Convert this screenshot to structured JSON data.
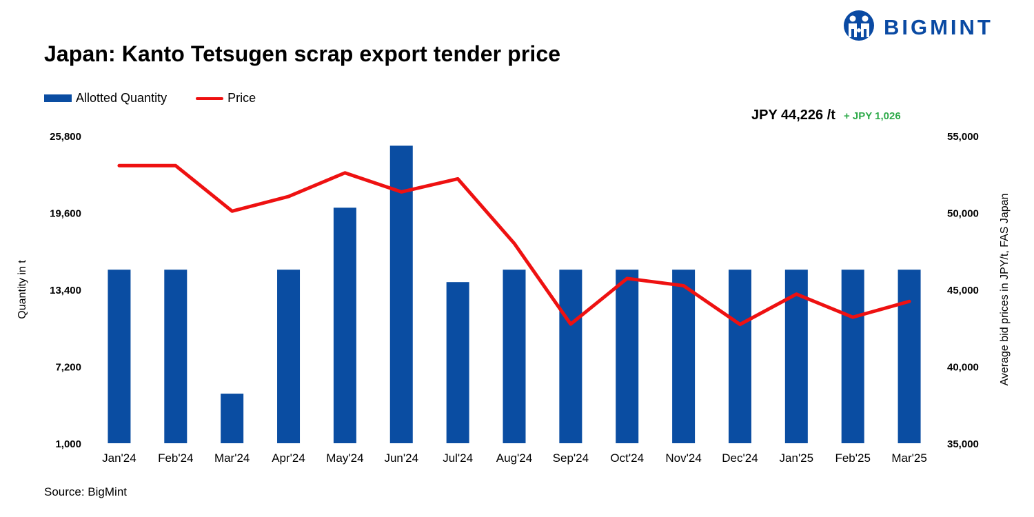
{
  "brand": {
    "name": "BIGMINT",
    "color": "#0a4aa3"
  },
  "title": "Japan: Kanto Tetsugen scrap export tender price",
  "latest": {
    "price": "JPY 44,226 /t",
    "change": "+ JPY 1,026",
    "change_color": "#2eaa4a"
  },
  "source": "Source: BigMint",
  "chart_data": {
    "type": "bar+line",
    "categories": [
      "Jan'24",
      "Feb'24",
      "Mar'24",
      "Apr'24",
      "May'24",
      "Jun'24",
      "Jul'24",
      "Aug'24",
      "Sep'24",
      "Oct'24",
      "Nov'24",
      "Dec'24",
      "Jan'25",
      "Feb'25",
      "Mar'25"
    ],
    "series": [
      {
        "name": "Allotted Quantity",
        "type": "bar",
        "axis": "left",
        "color": "#0a4da2",
        "values": [
          15000,
          15000,
          5000,
          15000,
          20000,
          25000,
          14000,
          15000,
          15000,
          15000,
          15000,
          15000,
          15000,
          15000,
          15000
        ]
      },
      {
        "name": "Price",
        "type": "line",
        "axis": "right",
        "color": "#ee1111",
        "values": [
          53060,
          53060,
          50100,
          51050,
          52590,
          51350,
          52200,
          48000,
          42750,
          45720,
          45250,
          42730,
          44700,
          43200,
          44226
        ]
      }
    ],
    "ylabel": "Quantity in t",
    "y2label": "Average bid prices in JPY/t, FAS Japan",
    "ylim": [
      1000,
      25800
    ],
    "yticks": [
      1000,
      7200,
      13400,
      19600,
      25800
    ],
    "ytick_labels": [
      "1,000",
      "7,200",
      "13,400",
      "19,600",
      "25,800"
    ],
    "y2lim": [
      35000,
      55000
    ],
    "y2ticks": [
      35000,
      40000,
      45000,
      50000,
      55000
    ],
    "y2tick_labels": [
      "35,000",
      "40,000",
      "45,000",
      "50,000",
      "55,000"
    ],
    "grid": false,
    "legend": "top-left"
  }
}
